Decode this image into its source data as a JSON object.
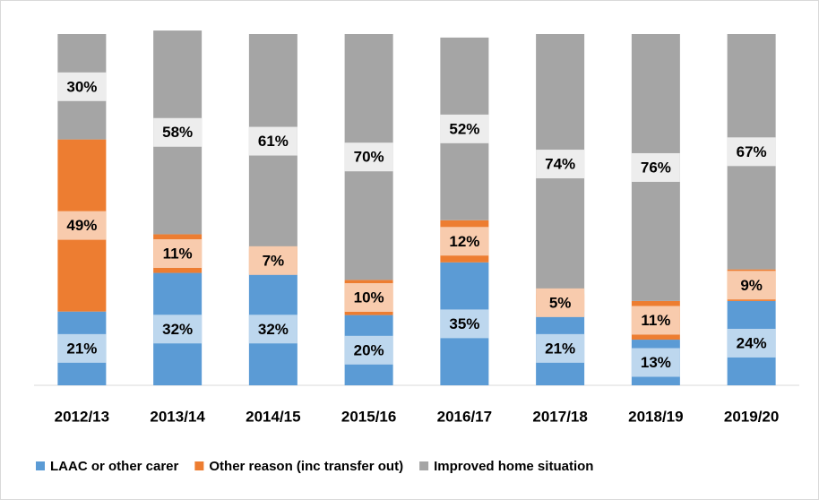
{
  "chart_data": {
    "type": "stacked_bar",
    "categories": [
      "2012/13",
      "2013/14",
      "2014/15",
      "2015/16",
      "2016/17",
      "2017/18",
      "2018/19",
      "2019/20"
    ],
    "ylim": [
      0,
      100
    ],
    "legend": "bottom",
    "series": [
      {
        "name": "LAAC or other carer",
        "color": "#5b9bd5",
        "label_color": "#bdd7ee",
        "values": [
          21,
          32,
          32,
          20,
          35,
          21,
          13,
          24
        ],
        "value_labels": [
          "21%",
          "32%",
          "32%",
          "20%",
          "35%",
          "21%",
          "13%",
          "24%"
        ]
      },
      {
        "name": "Other reason (inc transfer out)",
        "color": "#ed7d31",
        "label_color": "#f8cbad",
        "values": [
          49,
          11,
          7,
          10,
          12,
          5,
          11,
          9
        ],
        "value_labels": [
          "49%",
          "11%",
          "7%",
          "10%",
          "12%",
          "5%",
          "11%",
          "9%"
        ]
      },
      {
        "name": "Improved home situation",
        "color": "#a5a5a5",
        "label_color": "#ededed",
        "values": [
          30,
          58,
          61,
          70,
          52,
          74,
          76,
          67
        ],
        "value_labels": [
          "30%",
          "58%",
          "61%",
          "70%",
          "52%",
          "74%",
          "76%",
          "67%"
        ]
      }
    ]
  }
}
